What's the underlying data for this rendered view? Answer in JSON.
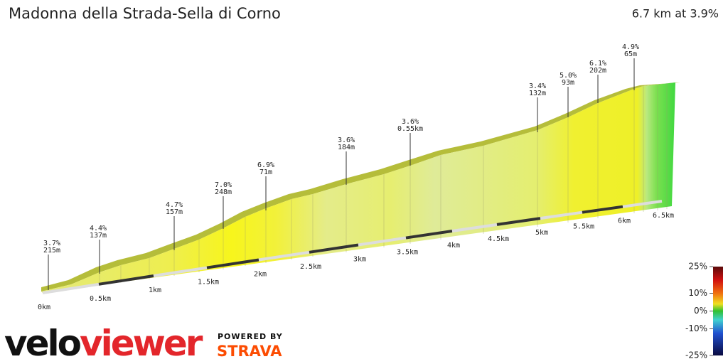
{
  "chart_data": {
    "type": "profile",
    "title": "Madonna della Strada-Sella di Corno",
    "subtitle": "6.7 km at 3.9%",
    "annotations": [
      {
        "grade": "3.7%",
        "length": "215m"
      },
      {
        "grade": "4.4%",
        "length": "137m"
      },
      {
        "grade": "4.7%",
        "length": "157m"
      },
      {
        "grade": "7.0%",
        "length": "248m"
      },
      {
        "grade": "6.9%",
        "length": "71m"
      },
      {
        "grade": "3.6%",
        "length": "184m"
      },
      {
        "grade": "3.6%",
        "length": "0.55km"
      },
      {
        "grade": "3.4%",
        "length": "132m"
      },
      {
        "grade": "5.0%",
        "length": "93m"
      },
      {
        "grade": "6.1%",
        "length": "202m"
      },
      {
        "grade": "4.9%",
        "length": "65m"
      }
    ],
    "xticks": [
      {
        "value": 0,
        "label": "0km"
      },
      {
        "value": 0.5,
        "label": "0.5km"
      },
      {
        "value": 1,
        "label": "1km"
      },
      {
        "value": 1.5,
        "label": "1.5km"
      },
      {
        "value": 2,
        "label": "2km"
      },
      {
        "value": 2.5,
        "label": "2.5km"
      },
      {
        "value": 3,
        "label": "3km"
      },
      {
        "value": 3.5,
        "label": "3.5km"
      },
      {
        "value": 4,
        "label": "4km"
      },
      {
        "value": 4.5,
        "label": "4.5km"
      },
      {
        "value": 5,
        "label": "5km"
      },
      {
        "value": 5.5,
        "label": "5.5km"
      },
      {
        "value": 6,
        "label": "6km"
      },
      {
        "value": 6.5,
        "label": "6.5km"
      }
    ],
    "colorbar_lim": [
      -25,
      25
    ],
    "colorbar_ticks": [
      {
        "value": 25,
        "label": "25%"
      },
      {
        "value": 10,
        "label": "10%"
      },
      {
        "value": 0,
        "label": "0%"
      },
      {
        "value": -10,
        "label": "-10%"
      },
      {
        "value": -25,
        "label": "-25%"
      }
    ],
    "logo_velo": "velo",
    "logo_viewer": "viewer",
    "powered_by": "POWERED BY",
    "strava": "STRAVA"
  }
}
